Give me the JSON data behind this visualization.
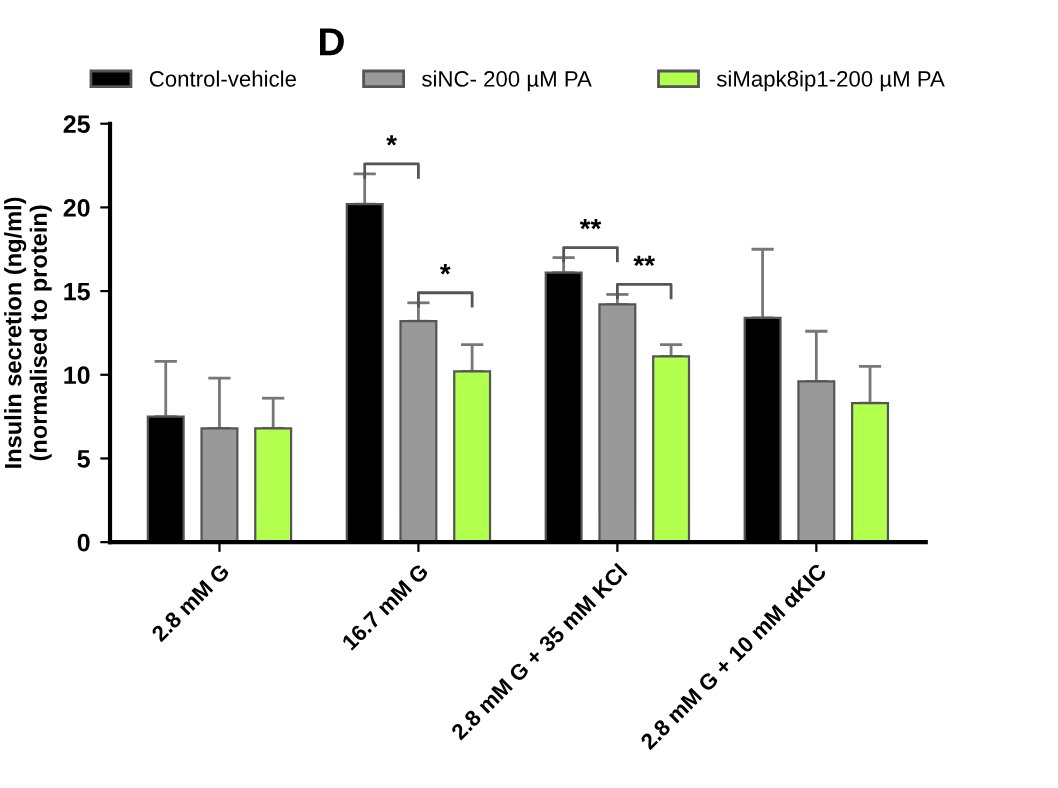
{
  "chart_data": {
    "type": "bar",
    "title": "D",
    "ylabel": "Insulin secretion (ng/ml)\n(normalised to protein)",
    "categories": [
      "2.8 mM G",
      "16.7 mM G",
      "2.8 mM G + 35 mM KCl",
      "2.8 mM G + 10 mM αKIC"
    ],
    "series": [
      {
        "name": "Control-vehicle",
        "color": "#000000",
        "values": [
          7.5,
          20.2,
          16.1,
          13.4
        ],
        "errors": [
          [
            7.5,
            10.8
          ],
          [
            20.2,
            22.0
          ],
          [
            16.1,
            17.0
          ],
          [
            13.4,
            17.5
          ]
        ]
      },
      {
        "name": "siNC- 200 µM PA",
        "color": "#999999",
        "values": [
          6.8,
          13.2,
          14.2,
          9.6
        ],
        "errors": [
          [
            6.8,
            9.8
          ],
          [
            13.2,
            14.3
          ],
          [
            14.2,
            14.8
          ],
          [
            9.6,
            12.6
          ]
        ]
      },
      {
        "name": "siMapk8ip1-200 µM PA",
        "color": "#b3ff4d",
        "values": [
          6.8,
          10.2,
          11.1,
          8.3
        ],
        "errors": [
          [
            6.8,
            8.6
          ],
          [
            10.2,
            11.8
          ],
          [
            11.1,
            11.8
          ],
          [
            8.3,
            10.5
          ]
        ]
      }
    ],
    "annotations": [
      "*",
      "*",
      "**",
      "**"
    ],
    "ylim": [
      0,
      25
    ],
    "yticks": [
      0,
      5,
      10,
      15,
      20,
      25
    ],
    "grid": false,
    "legend": "top"
  }
}
